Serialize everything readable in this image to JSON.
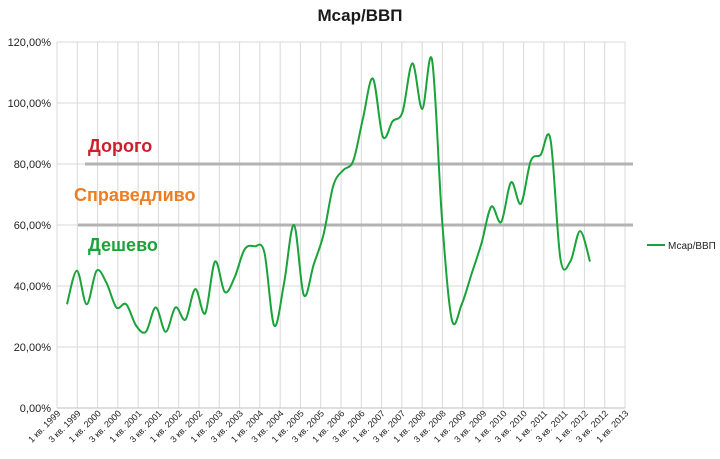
{
  "chart_data": {
    "type": "line",
    "title": "Мсар/ВВП",
    "xlabel": "",
    "ylabel": "",
    "ylim": [
      0,
      1.2
    ],
    "yticks": [
      "0,00%",
      "20,00%",
      "40,00%",
      "60,00%",
      "80,00%",
      "100,00%",
      "120,00%"
    ],
    "x_labels": [
      "1 кв. 1999",
      "3 кв. 1999",
      "1 кв. 2000",
      "3 кв. 2000",
      "1 кв. 2001",
      "3 кв. 2001",
      "1 кв. 2002",
      "3 кв. 2002",
      "1 кв. 2003",
      "3 кв. 2003",
      "1 кв. 2004",
      "3 кв. 2004",
      "1 кв. 2005",
      "3 кв. 2005",
      "1 кв. 2006",
      "3 кв. 2006",
      "1 кв. 2007",
      "3 кв. 2007",
      "1 кв. 2008",
      "3 кв. 2008",
      "1 кв. 2009",
      "3 кв. 2009",
      "1 кв. 2010",
      "3 кв. 2010",
      "1 кв. 2011",
      "3 кв. 2011",
      "1 кв. 2012",
      "3 кв. 2012",
      "1 кв. 2013"
    ],
    "grid": true,
    "legend_position": "right",
    "series": [
      {
        "name": "Мсар/ВВП",
        "color": "#1aa33a",
        "values": [
          0.34,
          0.45,
          0.34,
          0.45,
          0.41,
          0.33,
          0.34,
          0.27,
          0.25,
          0.33,
          0.25,
          0.33,
          0.29,
          0.39,
          0.31,
          0.48,
          0.38,
          0.43,
          0.52,
          0.53,
          0.51,
          0.27,
          0.41,
          0.6,
          0.37,
          0.47,
          0.57,
          0.73,
          0.78,
          0.81,
          0.95,
          1.08,
          0.89,
          0.94,
          0.97,
          1.13,
          0.98,
          1.14,
          0.62,
          0.29,
          0.34,
          0.44,
          0.54,
          0.66,
          0.61,
          0.74,
          0.67,
          0.81,
          0.83,
          0.88,
          0.49,
          0.48,
          0.58,
          0.48
        ]
      }
    ],
    "reference_lines": [
      {
        "value": 0.8,
        "color": "#b3b3b3"
      },
      {
        "value": 0.6,
        "color": "#b3b3b3"
      }
    ],
    "zone_labels": [
      {
        "text": "Дорого",
        "color": "#cc1f2b"
      },
      {
        "text": "Справедливо",
        "color": "#ee7d22"
      },
      {
        "text": "Дешево",
        "color": "#1aa33a"
      }
    ]
  }
}
